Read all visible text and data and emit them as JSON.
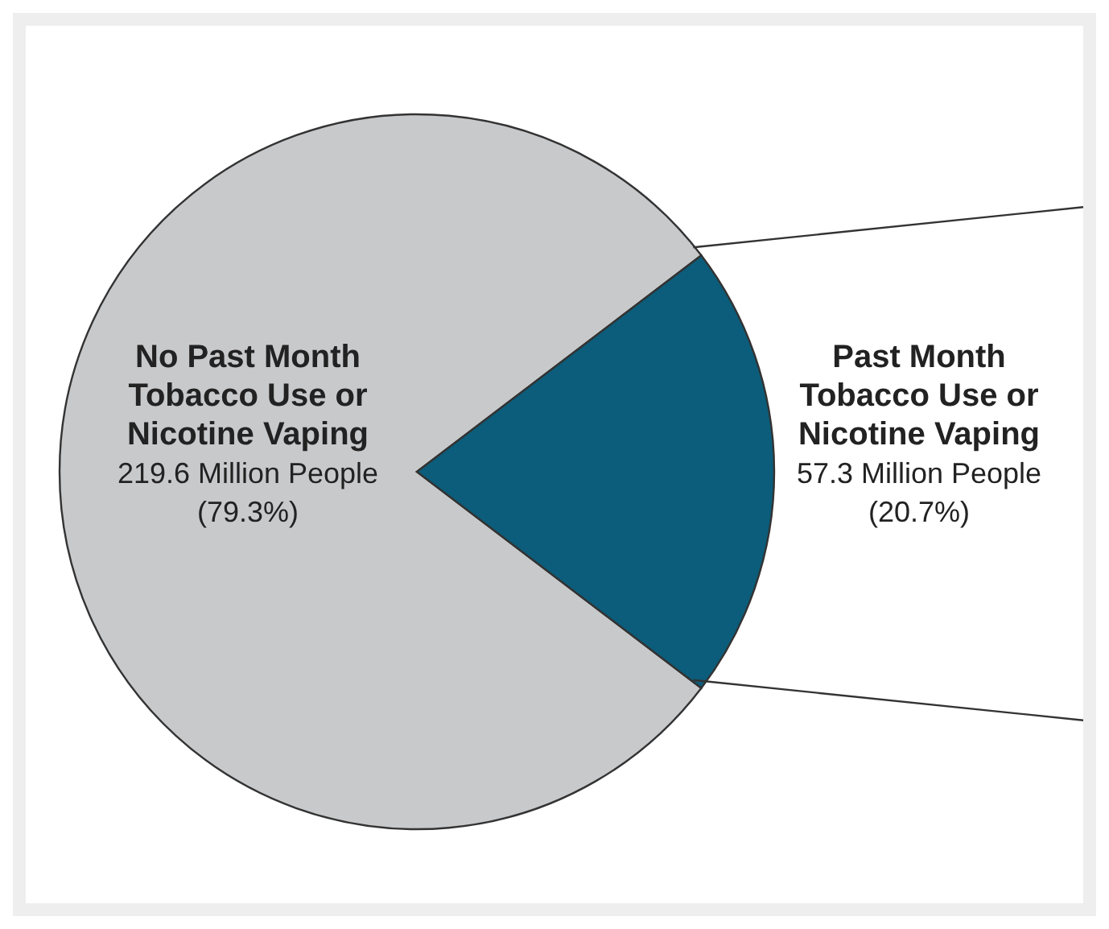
{
  "chart_data": {
    "type": "pie",
    "categories": [
      "No Past Month Tobacco Use or Nicotine Vaping",
      "Past Month Tobacco Use or Nicotine Vaping"
    ],
    "values": [
      219.6,
      57.3
    ],
    "colors": [
      "#c8c9cb",
      "#0b5d7b"
    ],
    "value_labels": [
      "219.6 Million People (79.3%)",
      "57.3 Million People (20.7%)"
    ]
  }
}
